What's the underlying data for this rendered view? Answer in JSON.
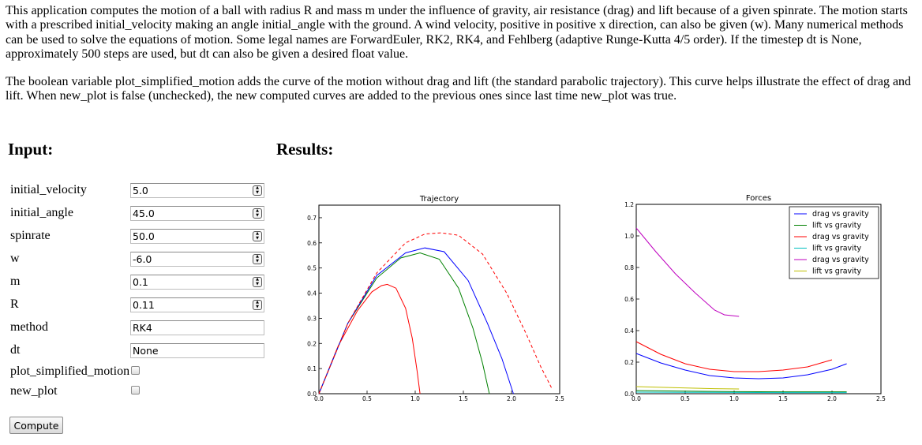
{
  "description": {
    "paragraph1": "This application computes the motion of a ball with radius R and mass m under the influence of gravity, air resistance (drag) and lift because of a given spinrate. The motion starts with a prescribed initial_velocity making an angle initial_angle with the ground. A wind velocity, positive in positive x direction, can also be given (w). Many numerical methods can be used to solve the equations of motion. Some legal names are ForwardEuler, RK2, RK4, and Fehlberg (adaptive Runge-Kutta 4/5 order). If the timestep dt is None, approximately 500 steps are used, but dt can also be given a desired float value.",
    "paragraph2": "The boolean variable plot_simplified_motion adds the curve of the motion without drag and lift (the standard parabolic trajectory). This curve helps illustrate the effect of drag and lift. When new_plot is false (unchecked), the new computed curves are added to the previous ones since last time new_plot was true."
  },
  "input_heading": "Input:",
  "results_heading": "Results:",
  "form": {
    "initial_velocity": {
      "label": "initial_velocity",
      "value": "5.0"
    },
    "initial_angle": {
      "label": "initial_angle",
      "value": "45.0"
    },
    "spinrate": {
      "label": "spinrate",
      "value": "50.0"
    },
    "w": {
      "label": "w",
      "value": "-6.0"
    },
    "m": {
      "label": "m",
      "value": "0.1"
    },
    "R": {
      "label": "R",
      "value": "0.11"
    },
    "method": {
      "label": "method",
      "value": "RK4"
    },
    "dt": {
      "label": "dt",
      "value": "None"
    },
    "plot_simplified_motion": {
      "label": "plot_simplified_motion",
      "checked": false
    },
    "new_plot": {
      "label": "new_plot",
      "checked": false
    },
    "compute_label": "Compute"
  },
  "chart_data": [
    {
      "type": "line",
      "title": "Trajectory",
      "xlabel": "",
      "ylabel": "",
      "xlim": [
        0.0,
        2.5
      ],
      "ylim": [
        0.0,
        0.75
      ],
      "xticks": [
        "0.0",
        "0.5",
        "1.0",
        "1.5",
        "2.0",
        "2.5"
      ],
      "yticks": [
        "0.0",
        "0.1",
        "0.2",
        "0.3",
        "0.4",
        "0.5",
        "0.6",
        "0.7"
      ],
      "grid": false,
      "series": [
        {
          "color": "#ff0000",
          "style": "solid",
          "x": [
            0.0,
            0.2,
            0.4,
            0.55,
            0.65,
            0.71,
            0.8,
            0.9,
            0.97,
            1.02,
            1.05
          ],
          "y": [
            0.0,
            0.19,
            0.33,
            0.405,
            0.43,
            0.435,
            0.42,
            0.34,
            0.22,
            0.09,
            0.0
          ]
        },
        {
          "color": "#008000",
          "style": "solid",
          "x": [
            0.0,
            0.3,
            0.6,
            0.85,
            1.05,
            1.25,
            1.45,
            1.6,
            1.7,
            1.77
          ],
          "y": [
            0.0,
            0.28,
            0.46,
            0.54,
            0.56,
            0.535,
            0.42,
            0.26,
            0.12,
            0.0
          ]
        },
        {
          "color": "#0000ff",
          "style": "solid",
          "x": [
            0.0,
            0.3,
            0.6,
            0.9,
            1.1,
            1.3,
            1.55,
            1.75,
            1.9,
            2.02
          ],
          "y": [
            0.0,
            0.28,
            0.47,
            0.56,
            0.58,
            0.565,
            0.45,
            0.28,
            0.14,
            0.0
          ]
        },
        {
          "color": "#ff0000",
          "style": "dashed",
          "x": [
            0.0,
            0.3,
            0.6,
            0.9,
            1.1,
            1.27,
            1.45,
            1.7,
            1.95,
            2.15,
            2.3,
            2.42
          ],
          "y": [
            0.0,
            0.28,
            0.48,
            0.6,
            0.635,
            0.64,
            0.63,
            0.555,
            0.4,
            0.24,
            0.11,
            0.02
          ]
        }
      ]
    },
    {
      "type": "line",
      "title": "Forces",
      "xlabel": "",
      "ylabel": "",
      "xlim": [
        0.0,
        2.5
      ],
      "ylim": [
        0.0,
        1.2
      ],
      "xticks": [
        "0.0",
        "0.5",
        "1.0",
        "1.5",
        "2.0",
        "2.5"
      ],
      "yticks": [
        "0.0",
        "0.2",
        "0.4",
        "0.6",
        "0.8",
        "1.0",
        "1.2"
      ],
      "grid": false,
      "legend": "top-right",
      "series": [
        {
          "name": "drag vs gravity",
          "color": "#0000ff",
          "x": [
            0.0,
            0.25,
            0.5,
            0.75,
            1.0,
            1.25,
            1.5,
            1.75,
            2.0,
            2.15
          ],
          "y": [
            0.255,
            0.195,
            0.15,
            0.115,
            0.1,
            0.095,
            0.1,
            0.12,
            0.155,
            0.19
          ]
        },
        {
          "name": "lift vs gravity",
          "color": "#008000",
          "x": [
            0.0,
            0.5,
            1.0,
            1.5,
            2.0,
            2.15
          ],
          "y": [
            0.02,
            0.016,
            0.013,
            0.012,
            0.012,
            0.012
          ]
        },
        {
          "name": "drag vs gravity",
          "color": "#ff0000",
          "x": [
            0.0,
            0.25,
            0.5,
            0.75,
            1.0,
            1.25,
            1.5,
            1.75,
            2.0
          ],
          "y": [
            0.33,
            0.25,
            0.19,
            0.155,
            0.14,
            0.14,
            0.15,
            0.17,
            0.215
          ]
        },
        {
          "name": "lift vs gravity",
          "color": "#00bfbf",
          "x": [
            0.0,
            0.5,
            1.0,
            1.5,
            2.0,
            2.15
          ],
          "y": [
            0.01,
            0.009,
            0.008,
            0.007,
            0.007,
            0.007
          ]
        },
        {
          "name": "drag vs gravity",
          "color": "#bf00bf",
          "x": [
            0.0,
            0.2,
            0.4,
            0.6,
            0.8,
            0.9,
            1.05
          ],
          "y": [
            1.05,
            0.9,
            0.76,
            0.64,
            0.53,
            0.5,
            0.49
          ]
        },
        {
          "name": "lift vs gravity",
          "color": "#bfbf00",
          "x": [
            0.0,
            0.4,
            0.8,
            1.05
          ],
          "y": [
            0.045,
            0.038,
            0.032,
            0.03
          ]
        }
      ]
    }
  ]
}
